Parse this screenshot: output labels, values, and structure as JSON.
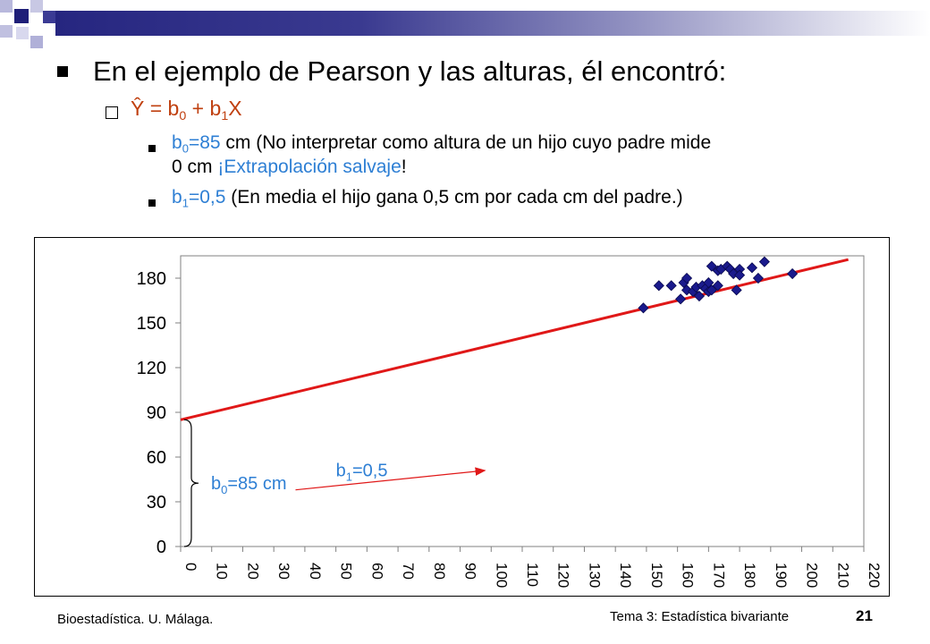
{
  "slide": {
    "title": "En el ejemplo de Pearson y las alturas, él encontró:",
    "formula": {
      "prefix": "Ŷ = b",
      "sub0": "0",
      "mid": " + b",
      "sub1": "1",
      "suffix": "X"
    },
    "b0_line": {
      "b": "b",
      "sub": "0",
      "val": "=85",
      "text1": " cm (No interpretar como altura de un hijo cuyo padre mide",
      "text2_pre": "0 cm ",
      "text2_blue": "¡Extrapolación salvaje",
      "text2_post": "!"
    },
    "b1_line": {
      "b": "b",
      "sub": "1",
      "val": "=0,5",
      "text": " (En media el hijo gana 0,5 cm por cada cm del padre.)"
    }
  },
  "colors": {
    "header": "#262680",
    "formula": "#c04010",
    "accent_blue": "#2e7fd4",
    "regression_line": "#e01818",
    "points": "#1a1a8c"
  },
  "chart_data": {
    "type": "scatter",
    "title": "",
    "xlabel": "",
    "ylabel": "",
    "xlim": [
      0,
      220
    ],
    "ylim": [
      0,
      195
    ],
    "x_ticks": [
      "0",
      "10",
      "20",
      "30",
      "40",
      "50",
      "60",
      "70",
      "80",
      "90",
      "100",
      "110",
      "120",
      "130",
      "140",
      "150",
      "160",
      "170",
      "180",
      "190",
      "200",
      "210",
      "220"
    ],
    "y_ticks": [
      "0",
      "30",
      "60",
      "90",
      "120",
      "150",
      "180"
    ],
    "points": [
      {
        "x": 149,
        "y": 160
      },
      {
        "x": 154,
        "y": 175
      },
      {
        "x": 158,
        "y": 175
      },
      {
        "x": 161,
        "y": 166
      },
      {
        "x": 162,
        "y": 177
      },
      {
        "x": 163,
        "y": 172
      },
      {
        "x": 163,
        "y": 180
      },
      {
        "x": 165,
        "y": 171
      },
      {
        "x": 166,
        "y": 174
      },
      {
        "x": 167,
        "y": 168
      },
      {
        "x": 168,
        "y": 175
      },
      {
        "x": 169,
        "y": 173
      },
      {
        "x": 170,
        "y": 171
      },
      {
        "x": 170,
        "y": 177
      },
      {
        "x": 171,
        "y": 188
      },
      {
        "x": 171,
        "y": 172
      },
      {
        "x": 173,
        "y": 175
      },
      {
        "x": 173,
        "y": 185
      },
      {
        "x": 174,
        "y": 186
      },
      {
        "x": 176,
        "y": 188
      },
      {
        "x": 177,
        "y": 186
      },
      {
        "x": 178,
        "y": 183
      },
      {
        "x": 179,
        "y": 172
      },
      {
        "x": 180,
        "y": 186
      },
      {
        "x": 180,
        "y": 182
      },
      {
        "x": 184,
        "y": 187
      },
      {
        "x": 186,
        "y": 180
      },
      {
        "x": 188,
        "y": 191
      },
      {
        "x": 197,
        "y": 183
      }
    ],
    "regression": {
      "intercept": 85,
      "slope": 0.5,
      "x_start": 0,
      "x_end": 215
    },
    "annotations": {
      "slope_label": {
        "b": "b",
        "sub": "1",
        "val": "=0,5"
      },
      "intercept_label": {
        "b": "b",
        "sub": "0",
        "val": "=85 cm"
      }
    }
  },
  "footer": {
    "left": "Bioestadística. U. Málaga.",
    "topic": "Tema 3: Estadística bivariante",
    "page": "21"
  }
}
